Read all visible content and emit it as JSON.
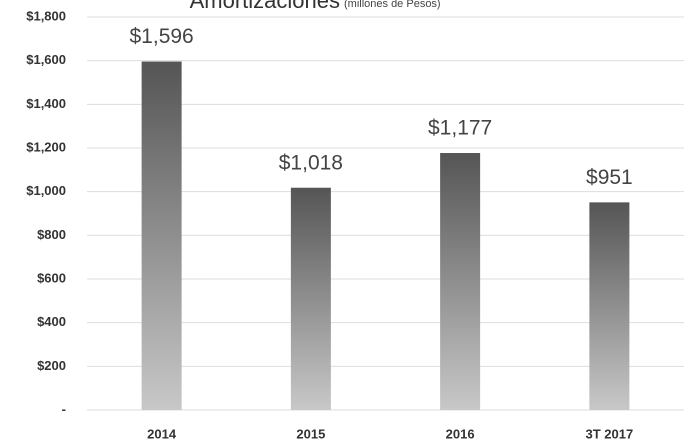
{
  "chart_data": {
    "type": "bar",
    "title": "Amortizaciones",
    "subtitle": "(millones de Pesos)",
    "categories": [
      "2014",
      "2015",
      "2016",
      "3T 2017"
    ],
    "values": [
      1596,
      1018,
      1177,
      951
    ],
    "value_labels": [
      "$1,596",
      "$1,018",
      "$1,177",
      "$951"
    ],
    "color": "#555555",
    "ylim": [
      0,
      1800
    ],
    "yticks": [
      {
        "value": 0,
        "label": "-"
      },
      {
        "value": 200,
        "label": "$200"
      },
      {
        "value": 400,
        "label": "$400"
      },
      {
        "value": 600,
        "label": "$600"
      },
      {
        "value": 800,
        "label": "$800"
      },
      {
        "value": 1000,
        "label": "$1,000"
      },
      {
        "value": 1200,
        "label": "$1,200"
      },
      {
        "value": 1400,
        "label": "$1,400"
      },
      {
        "value": 1600,
        "label": "$1,600"
      },
      {
        "value": 1800,
        "label": "$1,800"
      }
    ],
    "grid": true
  }
}
